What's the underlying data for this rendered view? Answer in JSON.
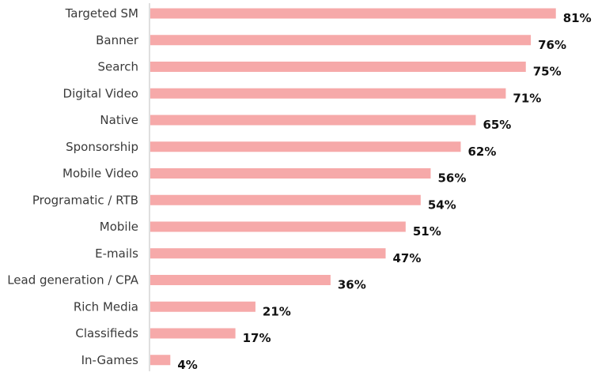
{
  "chart_data": {
    "type": "bar",
    "orientation": "horizontal",
    "categories": [
      "Targeted SM",
      "Banner",
      "Search",
      "Digital Video",
      "Native",
      "Sponsorship",
      "Mobile Video",
      "Programatic / RTB",
      "Mobile",
      "E-mails",
      "Lead generation / CPA",
      "Rich Media",
      "Classifieds",
      "In-Games"
    ],
    "values": [
      81,
      76,
      75,
      71,
      65,
      62,
      56,
      54,
      51,
      47,
      36,
      21,
      17,
      4
    ],
    "value_labels": [
      "81%",
      "76%",
      "75%",
      "71%",
      "65%",
      "62%",
      "56%",
      "54%",
      "51%",
      "47%",
      "36%",
      "21%",
      "17%",
      "4%"
    ],
    "unit": "%",
    "xlim": [
      0,
      100
    ],
    "grid": false,
    "legend": "none",
    "bar_color": "#f6a9a9",
    "title": "",
    "xlabel": "",
    "ylabel": ""
  }
}
